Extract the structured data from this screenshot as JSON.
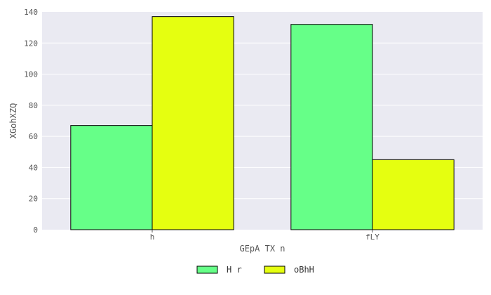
{
  "chart_data": {
    "type": "bar",
    "title": "",
    "xlabel": "GEpA TX n",
    "ylabel": "XGohXZQ",
    "categories": [
      "h",
      "fLY"
    ],
    "series": [
      {
        "name": "H r",
        "values": [
          67,
          132
        ],
        "color": "#66ff88"
      },
      {
        "name": "oBhH",
        "values": [
          137,
          45
        ],
        "color": "#e5ff10"
      }
    ],
    "ylim": [
      0,
      140
    ],
    "yticks": [
      0,
      20,
      40,
      60,
      80,
      100,
      120,
      140
    ],
    "grid": true,
    "legend_position": "bottom-center",
    "plot_background": "#eaeaf2"
  }
}
